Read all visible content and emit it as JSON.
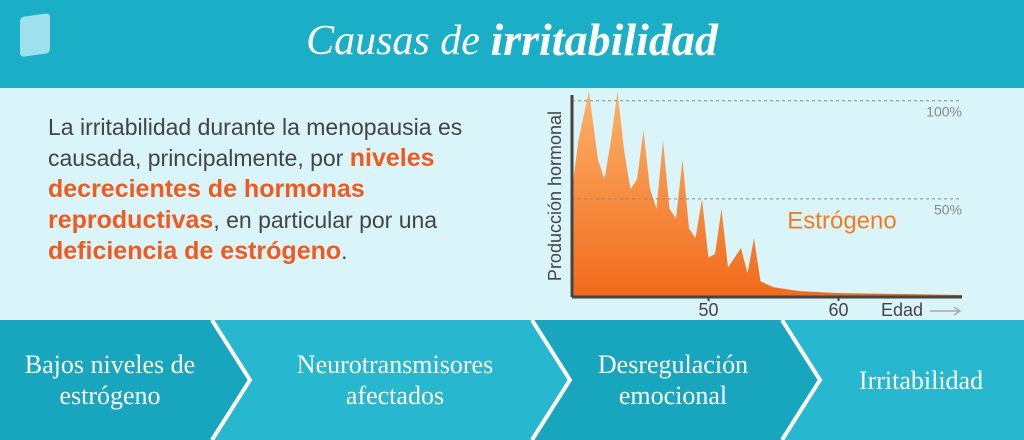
{
  "header": {
    "title_light": "Causas de",
    "title_bold": "irritabilidad"
  },
  "paragraph": [
    {
      "text": "La irritabilidad durante la menopausia es causada, principalmente, por ",
      "emphasis": false
    },
    {
      "text": "niveles decrecientes de hormonas reproductivas",
      "emphasis": true
    },
    {
      "text": ", en particular por una ",
      "emphasis": false
    },
    {
      "text": "deficiencia de estrógeno",
      "emphasis": true
    },
    {
      "text": ".",
      "emphasis": false
    }
  ],
  "chart_data": {
    "type": "area",
    "x_label": "Edad",
    "y_label": "Producción hormonal",
    "xlim": [
      39.5,
      69.5
    ],
    "xticks": [
      50,
      60
    ],
    "ylim": [
      0,
      105
    ],
    "yticks": [
      {
        "value": 50,
        "label": "50%"
      },
      {
        "value": 100,
        "label": "100%"
      }
    ],
    "series": [
      {
        "name": "Estrógeno",
        "color": "#f47b20",
        "x": [
          39.5,
          40,
          40.8,
          41.5,
          42,
          42.5,
          43,
          43.5,
          44,
          44.5,
          45,
          45.5,
          46,
          46.5,
          47,
          47.5,
          48,
          48.5,
          49,
          49.5,
          50,
          50.5,
          51,
          51.5,
          52,
          52.5,
          53,
          53.5,
          54,
          55,
          57,
          60,
          65,
          69.5
        ],
        "values": [
          55,
          80,
          105,
          70,
          60,
          80,
          105,
          75,
          55,
          60,
          85,
          55,
          45,
          80,
          45,
          40,
          70,
          35,
          30,
          50,
          20,
          22,
          45,
          15,
          20,
          25,
          12,
          30,
          8,
          5,
          3,
          2,
          1.5,
          1
        ]
      }
    ]
  },
  "steps": [
    "Bajos niveles de estrógeno",
    "Neurotransmisores afectados",
    "Desregulación emocional",
    "Irritabilidad"
  ]
}
